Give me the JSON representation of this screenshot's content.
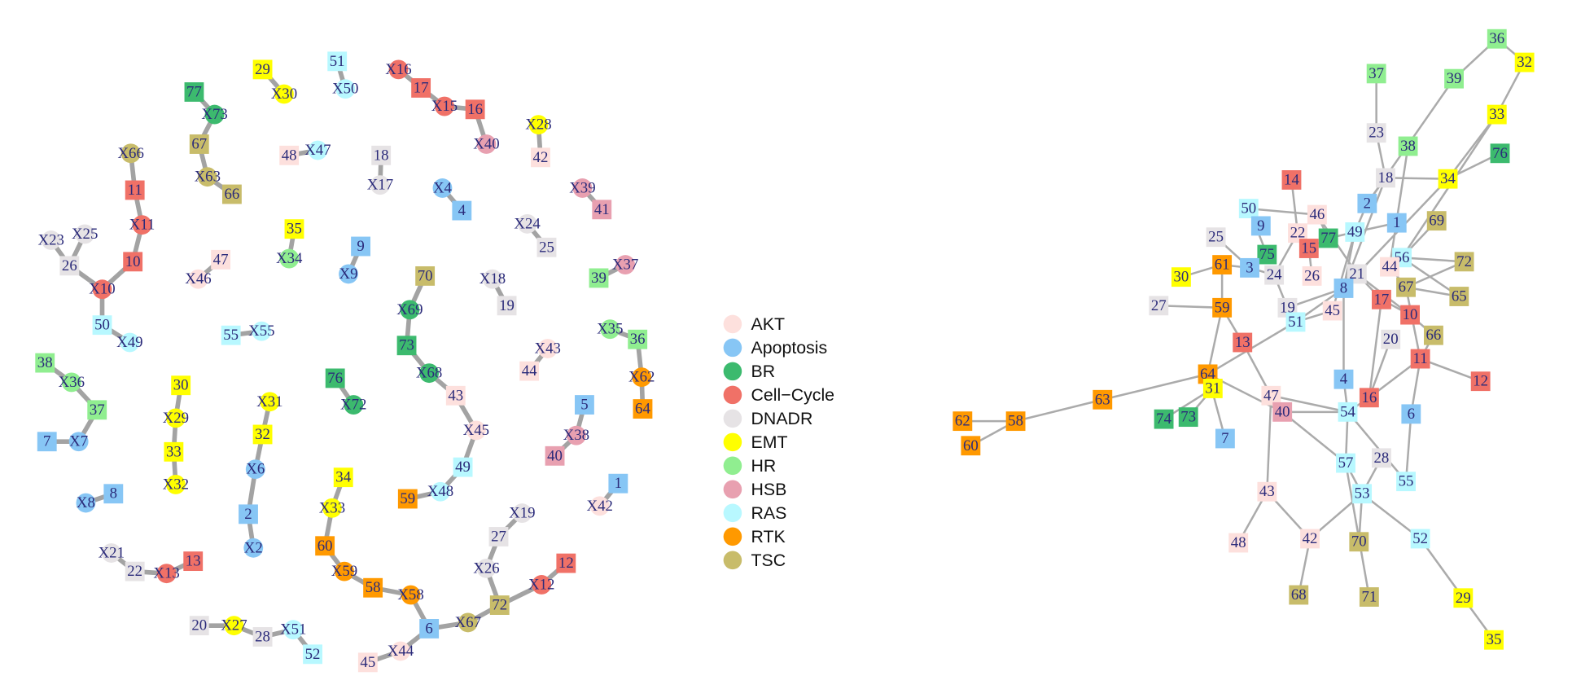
{
  "legend": {
    "items": [
      {
        "label": "AKT",
        "color": "#fde0dd"
      },
      {
        "label": "Apoptosis",
        "color": "#87c6f5"
      },
      {
        "label": "BR",
        "color": "#3cba6e"
      },
      {
        "label": "Cell−Cycle",
        "color": "#f07167"
      },
      {
        "label": "DNADR",
        "color": "#e6e3e5"
      },
      {
        "label": "EMT",
        "color": "#ffff00"
      },
      {
        "label": "HR",
        "color": "#90ee90"
      },
      {
        "label": "HSB",
        "color": "#e8a0b0"
      },
      {
        "label": "RAS",
        "color": "#b8f8ff"
      },
      {
        "label": "RTK",
        "color": "#ff9900"
      },
      {
        "label": "TSC",
        "color": "#c8bc6a"
      }
    ]
  },
  "left_network": {
    "nodes": [
      {
        "label": "29",
        "group": 5
      },
      {
        "label": "X30",
        "group": 5
      },
      {
        "label": "51",
        "group": 8
      },
      {
        "label": "X50",
        "group": 8
      },
      {
        "label": "X16",
        "group": 3
      },
      {
        "label": "17",
        "group": 3
      },
      {
        "label": "X15",
        "group": 3
      },
      {
        "label": "16",
        "group": 3
      },
      {
        "label": "X40",
        "group": 7
      },
      {
        "label": "X28",
        "group": 5
      },
      {
        "label": "42",
        "group": 0
      },
      {
        "label": "77",
        "group": 2
      },
      {
        "label": "X73",
        "group": 2
      },
      {
        "label": "67",
        "group": 10
      },
      {
        "label": "X63",
        "group": 10
      },
      {
        "label": "66",
        "group": 10
      },
      {
        "label": "X66",
        "group": 10
      },
      {
        "label": "11",
        "group": 3
      },
      {
        "label": "X11",
        "group": 3
      },
      {
        "label": "10",
        "group": 3
      },
      {
        "label": "X10",
        "group": 3
      },
      {
        "label": "26",
        "group": 4
      },
      {
        "label": "X23",
        "group": 4
      },
      {
        "label": "X25",
        "group": 4
      },
      {
        "label": "50",
        "group": 8
      },
      {
        "label": "X49",
        "group": 8
      },
      {
        "label": "48",
        "group": 0
      },
      {
        "label": "X47",
        "group": 8
      },
      {
        "label": "18",
        "group": 4
      },
      {
        "label": "X17",
        "group": 4
      },
      {
        "label": "X4",
        "group": 1
      },
      {
        "label": "4",
        "group": 1
      },
      {
        "label": "X39",
        "group": 7
      },
      {
        "label": "41",
        "group": 7
      },
      {
        "label": "X24",
        "group": 4
      },
      {
        "label": "25",
        "group": 4
      },
      {
        "label": "35",
        "group": 5
      },
      {
        "label": "X34",
        "group": 6
      },
      {
        "label": "9",
        "group": 1
      },
      {
        "label": "X9",
        "group": 1
      },
      {
        "label": "47",
        "group": 0
      },
      {
        "label": "X46",
        "group": 0
      },
      {
        "label": "70",
        "group": 10
      },
      {
        "label": "X69",
        "group": 2
      },
      {
        "label": "73",
        "group": 2
      },
      {
        "label": "X68",
        "group": 2
      },
      {
        "label": "X18",
        "group": 4
      },
      {
        "label": "19",
        "group": 4
      },
      {
        "label": "39",
        "group": 6
      },
      {
        "label": "X37",
        "group": 7
      },
      {
        "label": "55",
        "group": 8
      },
      {
        "label": "X55",
        "group": 8
      },
      {
        "label": "X35",
        "group": 6
      },
      {
        "label": "36",
        "group": 6
      },
      {
        "label": "X62",
        "group": 9
      },
      {
        "label": "64",
        "group": 9
      },
      {
        "label": "X43",
        "group": 0
      },
      {
        "label": "44",
        "group": 0
      },
      {
        "label": "38",
        "group": 6
      },
      {
        "label": "X36",
        "group": 6
      },
      {
        "label": "37",
        "group": 6
      },
      {
        "label": "X7",
        "group": 1
      },
      {
        "label": "7",
        "group": 1
      },
      {
        "label": "30",
        "group": 5
      },
      {
        "label": "X29",
        "group": 5
      },
      {
        "label": "33",
        "group": 5
      },
      {
        "label": "X32",
        "group": 5
      },
      {
        "label": "76",
        "group": 2
      },
      {
        "label": "X72",
        "group": 2
      },
      {
        "label": "X31",
        "group": 5
      },
      {
        "label": "32",
        "group": 5
      },
      {
        "label": "X6",
        "group": 1
      },
      {
        "label": "2",
        "group": 1
      },
      {
        "label": "X2",
        "group": 1
      },
      {
        "label": "43",
        "group": 0
      },
      {
        "label": "X45",
        "group": 0
      },
      {
        "label": "49",
        "group": 8
      },
      {
        "label": "X48",
        "group": 8
      },
      {
        "label": "59",
        "group": 9
      },
      {
        "label": "5",
        "group": 1
      },
      {
        "label": "X38",
        "group": 7
      },
      {
        "label": "40",
        "group": 7
      },
      {
        "label": "1",
        "group": 1
      },
      {
        "label": "X42",
        "group": 0
      },
      {
        "label": "X8",
        "group": 1
      },
      {
        "label": "8",
        "group": 1
      },
      {
        "label": "34",
        "group": 5
      },
      {
        "label": "X33",
        "group": 5
      },
      {
        "label": "60",
        "group": 9
      },
      {
        "label": "X59",
        "group": 9
      },
      {
        "label": "58",
        "group": 9
      },
      {
        "label": "X58",
        "group": 9
      },
      {
        "label": "6",
        "group": 1
      },
      {
        "label": "X67",
        "group": 10
      },
      {
        "label": "72",
        "group": 10
      },
      {
        "label": "X12",
        "group": 3
      },
      {
        "label": "12",
        "group": 3
      },
      {
        "label": "X44",
        "group": 0
      },
      {
        "label": "45",
        "group": 0
      },
      {
        "label": "X19",
        "group": 4
      },
      {
        "label": "27",
        "group": 4
      },
      {
        "label": "X26",
        "group": 4
      },
      {
        "label": "X21",
        "group": 4
      },
      {
        "label": "22",
        "group": 4
      },
      {
        "label": "X13",
        "group": 3
      },
      {
        "label": "13",
        "group": 3
      },
      {
        "label": "20",
        "group": 4
      },
      {
        "label": "X27",
        "group": 5
      },
      {
        "label": "28",
        "group": 4
      },
      {
        "label": "X51",
        "group": 8
      },
      {
        "label": "52",
        "group": 8
      }
    ]
  },
  "right_network": {
    "nodes": [
      {
        "label": "36",
        "group": 6
      },
      {
        "label": "32",
        "group": 5
      },
      {
        "label": "37",
        "group": 6
      },
      {
        "label": "39",
        "group": 6
      },
      {
        "label": "33",
        "group": 5
      },
      {
        "label": "23",
        "group": 4
      },
      {
        "label": "38",
        "group": 6
      },
      {
        "label": "76",
        "group": 2
      },
      {
        "label": "18",
        "group": 4
      },
      {
        "label": "34",
        "group": 5
      },
      {
        "label": "14",
        "group": 3
      },
      {
        "label": "2",
        "group": 1
      },
      {
        "label": "50",
        "group": 8
      },
      {
        "label": "46",
        "group": 0
      },
      {
        "label": "1",
        "group": 1
      },
      {
        "label": "69",
        "group": 10
      },
      {
        "label": "9",
        "group": 1
      },
      {
        "label": "22",
        "group": 0
      },
      {
        "label": "77",
        "group": 2
      },
      {
        "label": "49",
        "group": 8
      },
      {
        "label": "25",
        "group": 4
      },
      {
        "label": "15",
        "group": 3
      },
      {
        "label": "75",
        "group": 2
      },
      {
        "label": "56",
        "group": 8
      },
      {
        "label": "72",
        "group": 10
      },
      {
        "label": "61",
        "group": 9
      },
      {
        "label": "3",
        "group": 1
      },
      {
        "label": "44",
        "group": 0
      },
      {
        "label": "24",
        "group": 4
      },
      {
        "label": "26",
        "group": 0
      },
      {
        "label": "21",
        "group": 4
      },
      {
        "label": "30",
        "group": 5
      },
      {
        "label": "67",
        "group": 10
      },
      {
        "label": "8",
        "group": 1
      },
      {
        "label": "65",
        "group": 10
      },
      {
        "label": "17",
        "group": 3
      },
      {
        "label": "27",
        "group": 4
      },
      {
        "label": "59",
        "group": 9
      },
      {
        "label": "19",
        "group": 4
      },
      {
        "label": "10",
        "group": 3
      },
      {
        "label": "45",
        "group": 0
      },
      {
        "label": "51",
        "group": 8
      },
      {
        "label": "66",
        "group": 10
      },
      {
        "label": "20",
        "group": 4
      },
      {
        "label": "13",
        "group": 3
      },
      {
        "label": "11",
        "group": 3
      },
      {
        "label": "64",
        "group": 9
      },
      {
        "label": "12",
        "group": 3
      },
      {
        "label": "4",
        "group": 1
      },
      {
        "label": "31",
        "group": 5
      },
      {
        "label": "63",
        "group": 9
      },
      {
        "label": "47",
        "group": 0
      },
      {
        "label": "16",
        "group": 3
      },
      {
        "label": "40",
        "group": 7
      },
      {
        "label": "54",
        "group": 8
      },
      {
        "label": "6",
        "group": 1
      },
      {
        "label": "74",
        "group": 2
      },
      {
        "label": "73",
        "group": 2
      },
      {
        "label": "62",
        "group": 9
      },
      {
        "label": "58",
        "group": 9
      },
      {
        "label": "7",
        "group": 1
      },
      {
        "label": "60",
        "group": 9
      },
      {
        "label": "28",
        "group": 4
      },
      {
        "label": "57",
        "group": 8
      },
      {
        "label": "55",
        "group": 8
      },
      {
        "label": "53",
        "group": 8
      },
      {
        "label": "43",
        "group": 0
      },
      {
        "label": "42",
        "group": 0
      },
      {
        "label": "70",
        "group": 10
      },
      {
        "label": "52",
        "group": 8
      },
      {
        "label": "48",
        "group": 0
      },
      {
        "label": "29",
        "group": 5
      },
      {
        "label": "68",
        "group": 10
      },
      {
        "label": "71",
        "group": 10
      },
      {
        "label": "35",
        "group": 5
      }
    ]
  }
}
